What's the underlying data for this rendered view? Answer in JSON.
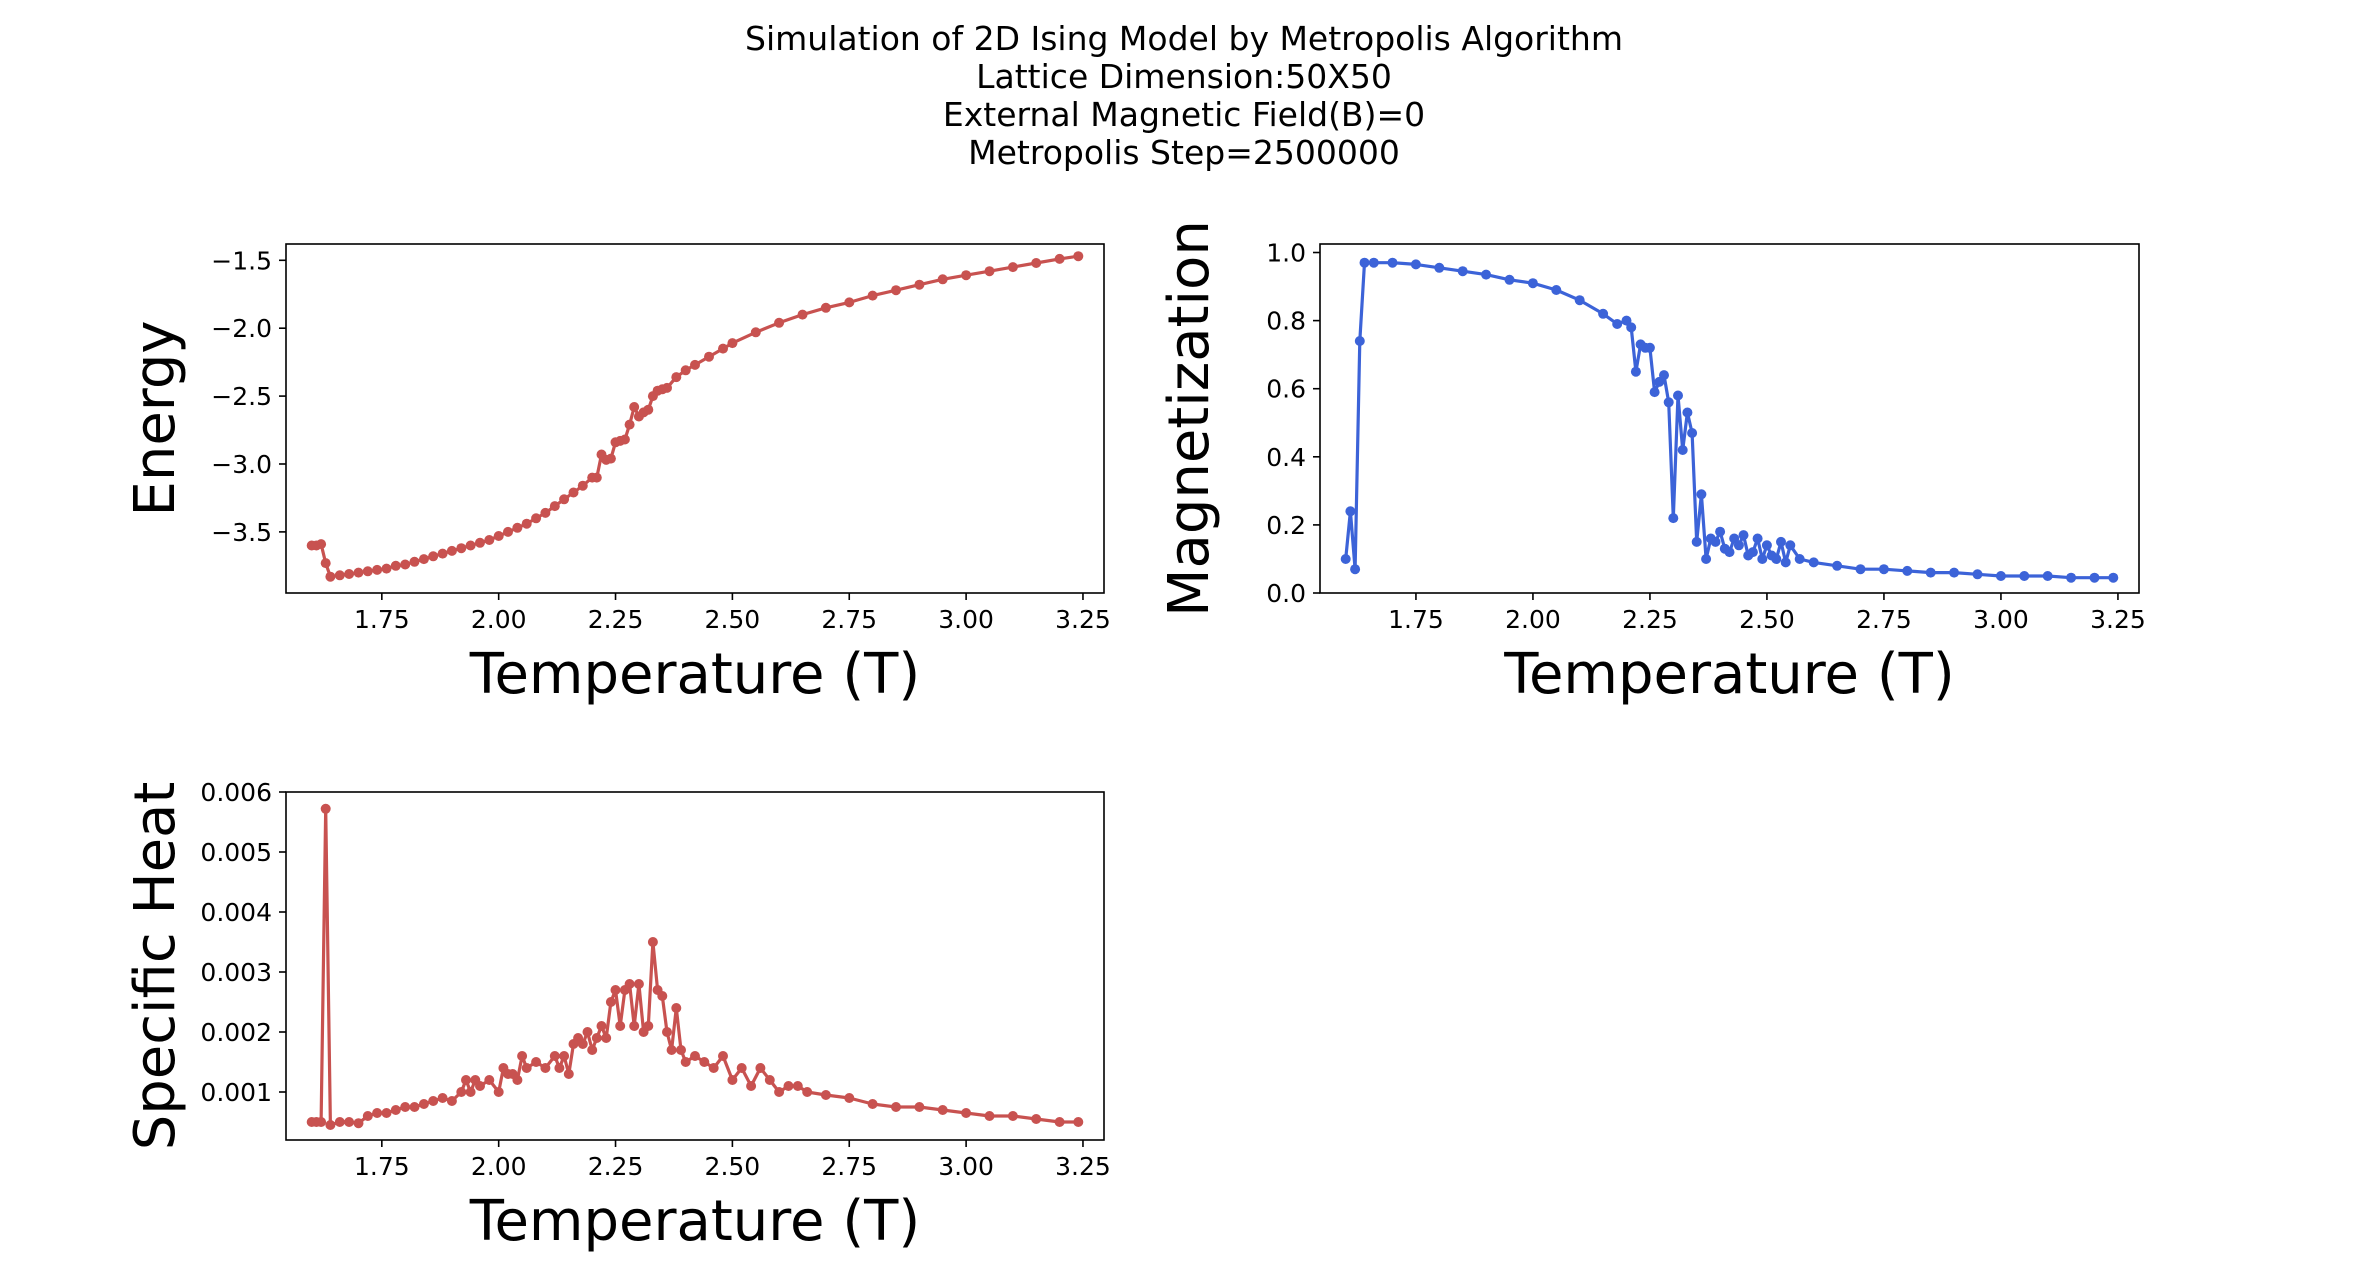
{
  "figure": {
    "title_lines": [
      "Simulation of 2D Ising Model by Metropolis Algorithm",
      "Lattice Dimension:50X50",
      "External Magnetic Field(B)=0",
      "Metropolis Step=2500000"
    ]
  },
  "chart_data": [
    {
      "type": "line",
      "xlabel": "Temperature (T)",
      "ylabel": "Energy",
      "xlim": [
        1.545,
        3.295
      ],
      "ylim": [
        -3.95,
        -1.38
      ],
      "xticks": [
        1.75,
        2.0,
        2.25,
        2.5,
        2.75,
        3.0,
        3.25
      ],
      "xtick_labels": [
        "1.75",
        "2.00",
        "2.25",
        "2.50",
        "2.75",
        "3.00",
        "3.25"
      ],
      "yticks": [
        -3.5,
        -3.0,
        -2.5,
        -2.0,
        -1.5
      ],
      "ytick_labels": [
        "−3.5",
        "−3.0",
        "−2.5",
        "−2.0",
        "−1.5"
      ],
      "color": "#c85250",
      "series": [
        {
          "x": [
            1.6,
            1.61,
            1.62,
            1.63,
            1.64,
            1.66,
            1.68,
            1.7,
            1.72,
            1.74,
            1.76,
            1.78,
            1.8,
            1.82,
            1.84,
            1.86,
            1.88,
            1.9,
            1.92,
            1.94,
            1.96,
            1.98,
            2.0,
            2.02,
            2.04,
            2.06,
            2.08,
            2.1,
            2.12,
            2.14,
            2.16,
            2.18,
            2.2,
            2.21,
            2.22,
            2.23,
            2.24,
            2.25,
            2.26,
            2.27,
            2.28,
            2.29,
            2.3,
            2.31,
            2.32,
            2.33,
            2.34,
            2.35,
            2.36,
            2.38,
            2.4,
            2.42,
            2.45,
            2.48,
            2.5,
            2.55,
            2.6,
            2.65,
            2.7,
            2.75,
            2.8,
            2.85,
            2.9,
            2.95,
            3.0,
            3.05,
            3.1,
            3.15,
            3.2,
            3.24
          ],
          "y": [
            -3.6,
            -3.6,
            -3.59,
            -3.73,
            -3.83,
            -3.82,
            -3.81,
            -3.8,
            -3.79,
            -3.78,
            -3.77,
            -3.75,
            -3.74,
            -3.72,
            -3.7,
            -3.68,
            -3.66,
            -3.64,
            -3.62,
            -3.6,
            -3.58,
            -3.56,
            -3.53,
            -3.5,
            -3.47,
            -3.44,
            -3.4,
            -3.36,
            -3.31,
            -3.26,
            -3.21,
            -3.16,
            -3.1,
            -3.1,
            -2.93,
            -2.97,
            -2.96,
            -2.84,
            -2.83,
            -2.82,
            -2.71,
            -2.58,
            -2.65,
            -2.62,
            -2.6,
            -2.5,
            -2.46,
            -2.45,
            -2.44,
            -2.36,
            -2.31,
            -2.27,
            -2.21,
            -2.15,
            -2.11,
            -2.03,
            -1.96,
            -1.9,
            -1.85,
            -1.81,
            -1.76,
            -1.72,
            -1.68,
            -1.64,
            -1.61,
            -1.58,
            -1.55,
            -1.52,
            -1.49,
            -1.47
          ]
        }
      ]
    },
    {
      "type": "line",
      "xlabel": "Temperature (T)",
      "ylabel": "Magnetization",
      "xlim": [
        1.545,
        3.295
      ],
      "ylim": [
        0.0,
        1.025
      ],
      "xticks": [
        1.75,
        2.0,
        2.25,
        2.5,
        2.75,
        3.0,
        3.25
      ],
      "xtick_labels": [
        "1.75",
        "2.00",
        "2.25",
        "2.50",
        "2.75",
        "3.00",
        "3.25"
      ],
      "yticks": [
        0.0,
        0.2,
        0.4,
        0.6,
        0.8,
        1.0
      ],
      "ytick_labels": [
        "0.0",
        "0.2",
        "0.4",
        "0.6",
        "0.8",
        "1.0"
      ],
      "color": "#3c63d8",
      "series": [
        {
          "x": [
            1.6,
            1.61,
            1.62,
            1.63,
            1.64,
            1.66,
            1.7,
            1.75,
            1.8,
            1.85,
            1.9,
            1.95,
            2.0,
            2.05,
            2.1,
            2.15,
            2.18,
            2.2,
            2.21,
            2.22,
            2.23,
            2.24,
            2.25,
            2.26,
            2.27,
            2.28,
            2.29,
            2.3,
            2.31,
            2.32,
            2.33,
            2.34,
            2.35,
            2.36,
            2.37,
            2.38,
            2.39,
            2.4,
            2.41,
            2.42,
            2.43,
            2.44,
            2.45,
            2.46,
            2.47,
            2.48,
            2.49,
            2.5,
            2.51,
            2.52,
            2.53,
            2.54,
            2.55,
            2.57,
            2.6,
            2.65,
            2.7,
            2.75,
            2.8,
            2.85,
            2.9,
            2.95,
            3.0,
            3.05,
            3.1,
            3.15,
            3.2,
            3.24
          ],
          "y": [
            0.1,
            0.24,
            0.07,
            0.74,
            0.97,
            0.97,
            0.97,
            0.965,
            0.955,
            0.945,
            0.935,
            0.92,
            0.91,
            0.89,
            0.86,
            0.82,
            0.79,
            0.8,
            0.78,
            0.65,
            0.73,
            0.72,
            0.72,
            0.59,
            0.62,
            0.64,
            0.56,
            0.22,
            0.58,
            0.42,
            0.53,
            0.47,
            0.15,
            0.29,
            0.1,
            0.16,
            0.15,
            0.18,
            0.13,
            0.12,
            0.16,
            0.14,
            0.17,
            0.11,
            0.12,
            0.16,
            0.1,
            0.14,
            0.11,
            0.1,
            0.15,
            0.09,
            0.14,
            0.1,
            0.09,
            0.08,
            0.07,
            0.07,
            0.065,
            0.06,
            0.06,
            0.055,
            0.05,
            0.05,
            0.05,
            0.045,
            0.045,
            0.045
          ]
        }
      ]
    },
    {
      "type": "line",
      "xlabel": "Temperature (T)",
      "ylabel": "Specific Heat",
      "xlim": [
        1.545,
        3.295
      ],
      "ylim": [
        0.0002,
        0.006
      ],
      "xticks": [
        1.75,
        2.0,
        2.25,
        2.5,
        2.75,
        3.0,
        3.25
      ],
      "xtick_labels": [
        "1.75",
        "2.00",
        "2.25",
        "2.50",
        "2.75",
        "3.00",
        "3.25"
      ],
      "yticks": [
        0.001,
        0.002,
        0.003,
        0.004,
        0.005,
        0.006
      ],
      "ytick_labels": [
        "0.001",
        "0.002",
        "0.003",
        "0.004",
        "0.005",
        "0.006"
      ],
      "color": "#c85250",
      "series": [
        {
          "x": [
            1.6,
            1.61,
            1.62,
            1.63,
            1.64,
            1.66,
            1.68,
            1.7,
            1.72,
            1.74,
            1.76,
            1.78,
            1.8,
            1.82,
            1.84,
            1.86,
            1.88,
            1.9,
            1.92,
            1.93,
            1.94,
            1.95,
            1.96,
            1.98,
            2.0,
            2.01,
            2.02,
            2.03,
            2.04,
            2.05,
            2.06,
            2.08,
            2.1,
            2.12,
            2.13,
            2.14,
            2.15,
            2.16,
            2.17,
            2.18,
            2.19,
            2.2,
            2.21,
            2.22,
            2.23,
            2.24,
            2.25,
            2.26,
            2.27,
            2.28,
            2.29,
            2.3,
            2.31,
            2.32,
            2.33,
            2.34,
            2.35,
            2.36,
            2.37,
            2.38,
            2.39,
            2.4,
            2.42,
            2.44,
            2.46,
            2.48,
            2.5,
            2.52,
            2.54,
            2.56,
            2.58,
            2.6,
            2.62,
            2.64,
            2.66,
            2.7,
            2.75,
            2.8,
            2.85,
            2.9,
            2.95,
            3.0,
            3.05,
            3.1,
            3.15,
            3.2,
            3.24
          ],
          "y": [
            0.0005,
            0.0005,
            0.0005,
            0.00572,
            0.00045,
            0.0005,
            0.0005,
            0.00048,
            0.0006,
            0.00065,
            0.00065,
            0.0007,
            0.00075,
            0.00075,
            0.0008,
            0.00085,
            0.0009,
            0.00085,
            0.001,
            0.0012,
            0.001,
            0.0012,
            0.0011,
            0.0012,
            0.001,
            0.0014,
            0.0013,
            0.0013,
            0.0012,
            0.0016,
            0.0014,
            0.0015,
            0.0014,
            0.0016,
            0.0014,
            0.0016,
            0.0013,
            0.0018,
            0.0019,
            0.0018,
            0.002,
            0.0017,
            0.0019,
            0.0021,
            0.0019,
            0.0025,
            0.0027,
            0.0021,
            0.0027,
            0.0028,
            0.0021,
            0.0028,
            0.002,
            0.0021,
            0.0035,
            0.0027,
            0.0026,
            0.002,
            0.0017,
            0.0024,
            0.0017,
            0.0015,
            0.0016,
            0.0015,
            0.0014,
            0.0016,
            0.0012,
            0.0014,
            0.0011,
            0.0014,
            0.0012,
            0.001,
            0.0011,
            0.0011,
            0.001,
            0.00095,
            0.0009,
            0.0008,
            0.00075,
            0.00075,
            0.0007,
            0.00065,
            0.0006,
            0.0006,
            0.00055,
            0.0005,
            0.0005
          ]
        }
      ]
    }
  ]
}
